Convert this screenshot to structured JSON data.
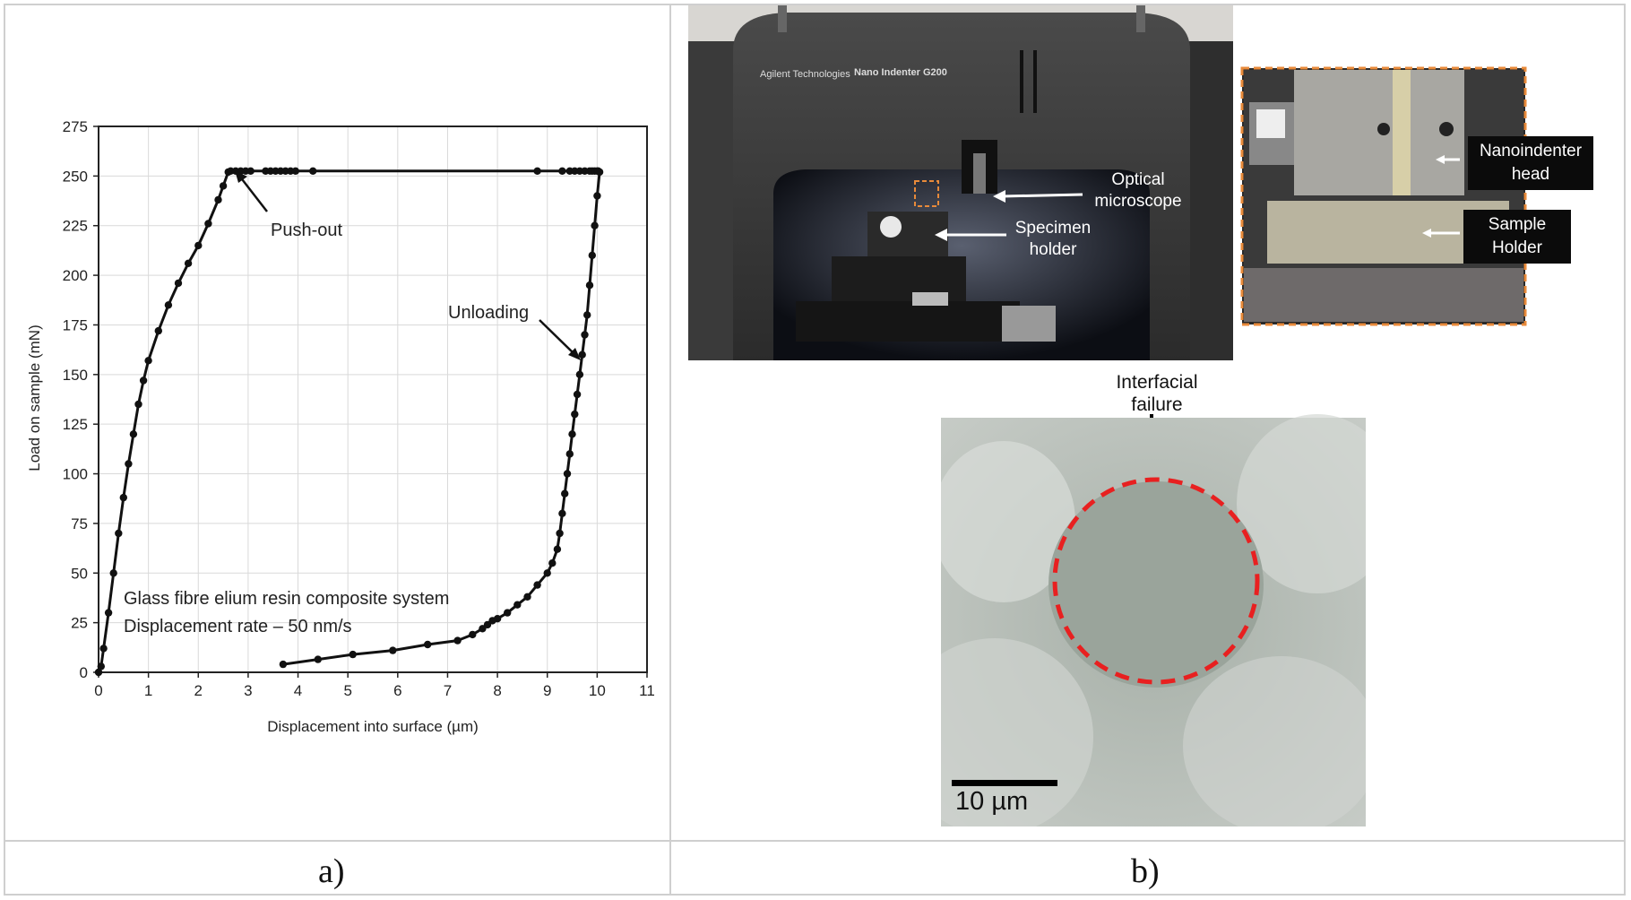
{
  "captions": {
    "a": "a)",
    "b": "b)"
  },
  "chart_data": {
    "type": "scatter",
    "xlabel": "Displacement into surface (µm)",
    "ylabel": "Load on sample (mN)",
    "xlim": [
      0,
      11
    ],
    "ylim": [
      0,
      275
    ],
    "xticks": [
      "0",
      "1",
      "2",
      "3",
      "4",
      "5",
      "6",
      "7",
      "8",
      "9",
      "10",
      "11"
    ],
    "yticks": [
      "0",
      "25",
      "50",
      "75",
      "100",
      "125",
      "150",
      "175",
      "200",
      "225",
      "250",
      "275"
    ],
    "grid": true,
    "annotations": {
      "pushout": "Push-out",
      "unloading": "Unloading",
      "system_line1": "Glass fibre elium resin composite system",
      "system_line2": "Displacement rate – 50 nm/s"
    },
    "loading": [
      [
        0,
        0
      ],
      [
        0.05,
        3
      ],
      [
        0.1,
        12
      ],
      [
        0.2,
        30
      ],
      [
        0.3,
        50
      ],
      [
        0.4,
        70
      ],
      [
        0.5,
        88
      ],
      [
        0.6,
        105
      ],
      [
        0.7,
        120
      ],
      [
        0.8,
        135
      ],
      [
        0.9,
        147
      ],
      [
        1.0,
        157
      ],
      [
        1.2,
        172
      ],
      [
        1.4,
        185
      ],
      [
        1.6,
        196
      ],
      [
        1.8,
        206
      ],
      [
        2.0,
        215
      ],
      [
        2.2,
        226
      ],
      [
        2.4,
        238
      ],
      [
        2.5,
        245
      ],
      [
        2.6,
        252
      ]
    ],
    "plateau": [
      [
        2.65,
        252.5
      ],
      [
        2.75,
        252.5
      ],
      [
        2.85,
        252.5
      ],
      [
        2.95,
        252.5
      ],
      [
        3.05,
        252.5
      ],
      [
        3.35,
        252.5
      ],
      [
        3.45,
        252.5
      ],
      [
        3.55,
        252.5
      ],
      [
        3.65,
        252.5
      ],
      [
        3.75,
        252.5
      ],
      [
        3.85,
        252.5
      ],
      [
        3.95,
        252.5
      ],
      [
        4.3,
        252.5
      ],
      [
        8.8,
        252.5
      ],
      [
        9.3,
        252.5
      ],
      [
        9.45,
        252.5
      ],
      [
        9.55,
        252.5
      ],
      [
        9.65,
        252.5
      ],
      [
        9.75,
        252.5
      ],
      [
        9.85,
        252.5
      ],
      [
        9.9,
        252.5
      ],
      [
        9.95,
        252.5
      ],
      [
        10.0,
        252.5
      ],
      [
        10.02,
        252.5
      ]
    ],
    "unloading": [
      [
        10.05,
        252
      ],
      [
        10.0,
        240
      ],
      [
        9.95,
        225
      ],
      [
        9.9,
        210
      ],
      [
        9.85,
        195
      ],
      [
        9.8,
        180
      ],
      [
        9.75,
        170
      ],
      [
        9.7,
        160
      ],
      [
        9.65,
        150
      ],
      [
        9.6,
        140
      ],
      [
        9.55,
        130
      ],
      [
        9.5,
        120
      ],
      [
        9.45,
        110
      ],
      [
        9.4,
        100
      ],
      [
        9.35,
        90
      ],
      [
        9.3,
        80
      ],
      [
        9.25,
        70
      ],
      [
        9.2,
        62
      ],
      [
        9.1,
        55
      ],
      [
        9.0,
        50
      ],
      [
        8.8,
        44
      ],
      [
        8.6,
        38
      ],
      [
        8.4,
        34
      ],
      [
        8.2,
        30
      ],
      [
        8.0,
        27
      ],
      [
        7.9,
        26
      ],
      [
        7.8,
        24
      ],
      [
        7.7,
        22
      ],
      [
        7.5,
        19
      ],
      [
        7.2,
        16
      ],
      [
        6.6,
        14
      ],
      [
        5.9,
        11
      ],
      [
        5.1,
        9
      ],
      [
        4.4,
        6.5
      ],
      [
        3.7,
        4
      ]
    ]
  },
  "photo": {
    "machine_brand": "Agilent Technologies",
    "machine_model": "Nano Indenter G200",
    "labels": {
      "optical_microscope": "Optical microscope",
      "specimen_holder": "Specimen holder",
      "nanoindenter_head": "Nanoindenter head",
      "sample_holder": "Sample Holder"
    }
  },
  "micrograph": {
    "title": "Interfacial failure",
    "scale_bar": "10 µm"
  }
}
